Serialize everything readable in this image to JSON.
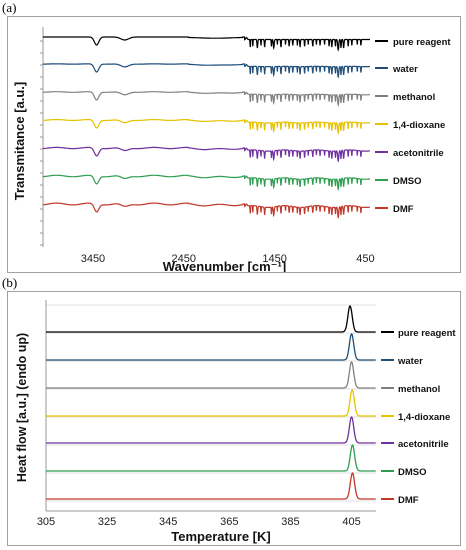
{
  "panels": [
    {
      "label": "(a)"
    },
    {
      "label": "(b)"
    }
  ],
  "series_colors": [
    "#000000",
    "#1f4e79",
    "#808080",
    "#e6c200",
    "#7030a0",
    "#2e9e4f",
    "#c0392b"
  ],
  "chart_data": [
    {
      "type": "line",
      "xlabel": "Wavenumber [cm⁻¹]",
      "ylabel": "Transmitance [a.u.]",
      "x_ticks": [
        3450,
        2450,
        1450,
        450
      ],
      "xlim": [
        4000,
        400
      ],
      "x_reversed": true,
      "y_tick_labels": false,
      "stacked_offset": true,
      "legend_position": "right",
      "series": [
        {
          "name": "pure reagent"
        },
        {
          "name": "water"
        },
        {
          "name": "methanol"
        },
        {
          "name": "1,4-dioxane"
        },
        {
          "name": "acetonitrile"
        },
        {
          "name": "DMSO"
        },
        {
          "name": "DMF"
        }
      ],
      "features_cm1": {
        "broad_dip": 3400,
        "weak_dip": 3100,
        "fingerprint_region": [
          1750,
          400
        ]
      }
    },
    {
      "type": "line",
      "xlabel": "Temperature [K]",
      "ylabel": "Heat flow [a.u.] (endo up)",
      "x_ticks": [
        305,
        325,
        345,
        365,
        385,
        405
      ],
      "xlim": [
        305,
        413
      ],
      "y_tick_labels": false,
      "stacked_offset": true,
      "legend_position": "right",
      "series": [
        {
          "name": "pure reagent",
          "peak_K": 404.5
        },
        {
          "name": "water",
          "peak_K": 405.0
        },
        {
          "name": "methanol",
          "peak_K": 405.0
        },
        {
          "name": "1,4-dioxane",
          "peak_K": 405.2
        },
        {
          "name": "acetonitrile",
          "peak_K": 405.0
        },
        {
          "name": "DMSO",
          "peak_K": 405.3
        },
        {
          "name": "DMF",
          "peak_K": 405.3
        }
      ]
    }
  ]
}
